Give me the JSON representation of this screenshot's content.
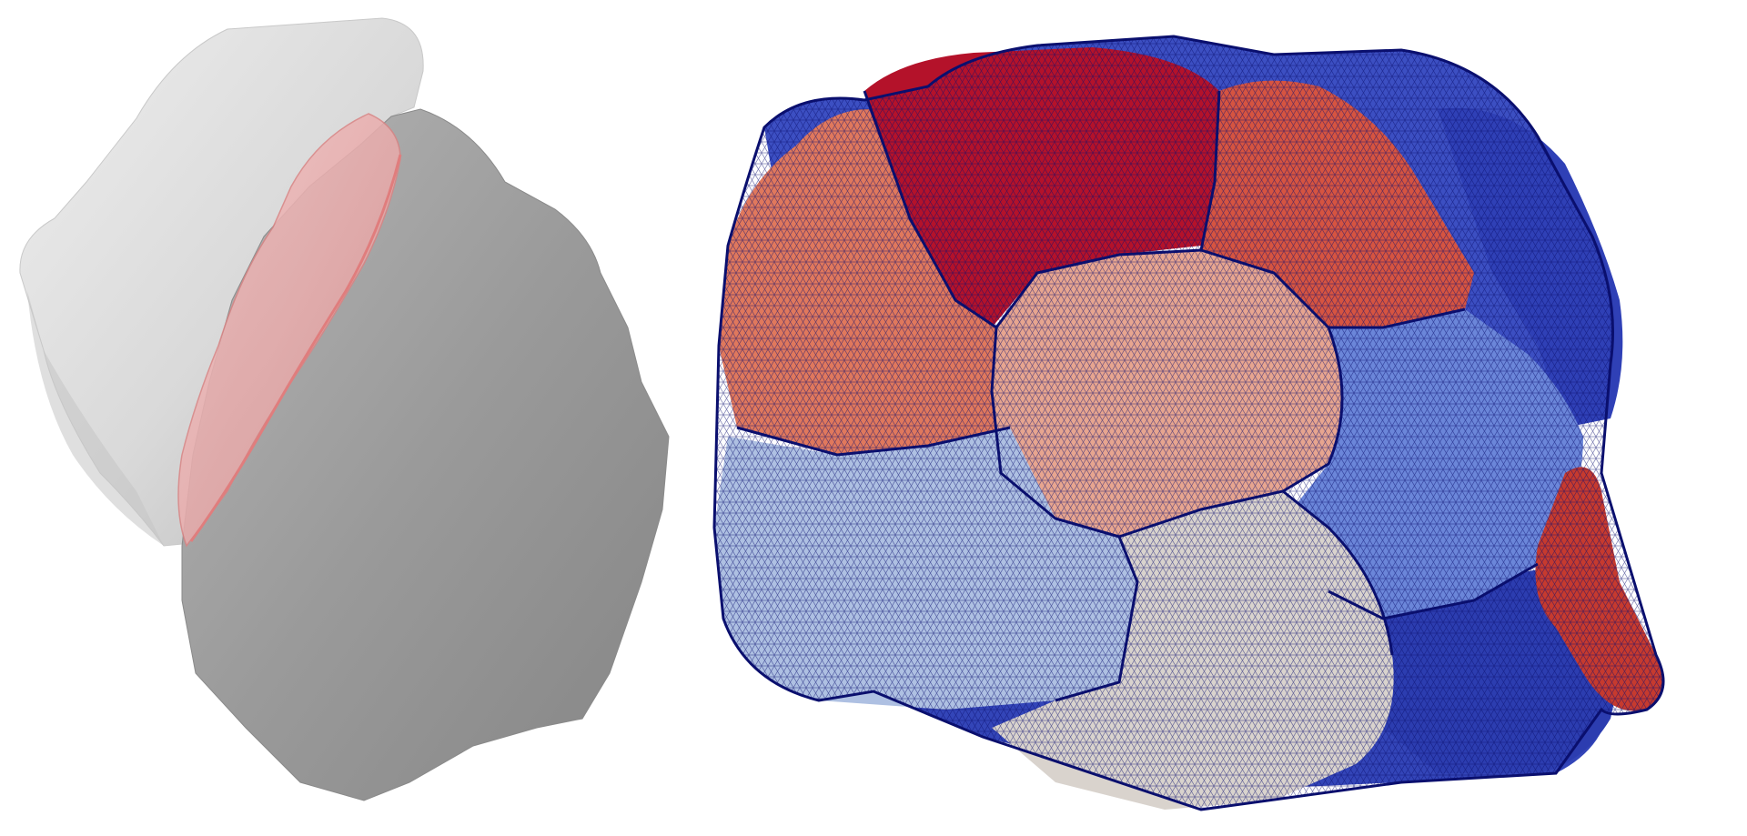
{
  "figure": {
    "left_panel": {
      "surfaces": [
        {
          "name": "upper-cell",
          "color": "#d8d8d8"
        },
        {
          "name": "lower-cell",
          "color": "#9c9c9c"
        },
        {
          "name": "contact-interface",
          "color": "#e9a3a3"
        }
      ]
    },
    "right_panel": {
      "mesh_color": "#0a0f6e",
      "regions": [
        {
          "name": "back-left-blue",
          "color": "#3c4fc2"
        },
        {
          "name": "top-blue",
          "color": "#4a5fd0"
        },
        {
          "name": "right-dark-blue",
          "color": "#2f40b6"
        },
        {
          "name": "top-dark-red",
          "color": "#b4122a"
        },
        {
          "name": "left-orange",
          "color": "#e0785c"
        },
        {
          "name": "top-right-red",
          "color": "#d65440"
        },
        {
          "name": "center-peach",
          "color": "#e7a58f"
        },
        {
          "name": "right-mid-blue",
          "color": "#6b86d9"
        },
        {
          "name": "right-red-tail",
          "color": "#c63a2e"
        },
        {
          "name": "lower-right-blue",
          "color": "#2c3db0"
        },
        {
          "name": "left-light-blue",
          "color": "#aec0e2"
        },
        {
          "name": "bottom-beige",
          "color": "#d9d3cd"
        },
        {
          "name": "bottom-blue",
          "color": "#3345b8"
        }
      ]
    }
  }
}
